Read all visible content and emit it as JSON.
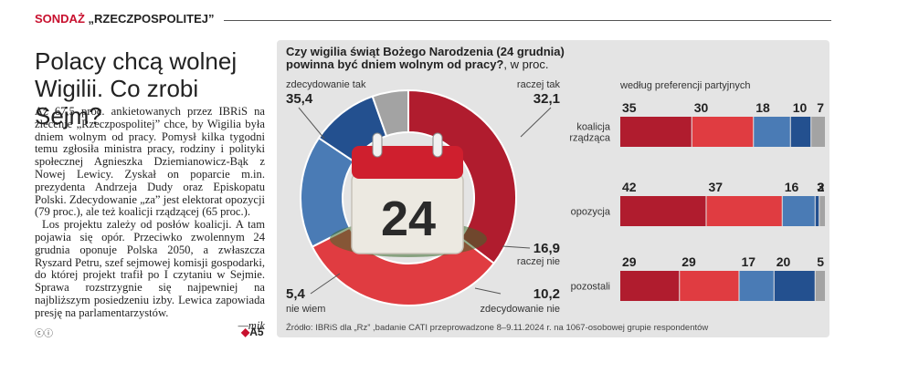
{
  "header": {
    "kicker_prefix": "SONDAŻ",
    "kicker_name": "„RZECZPOSPOLITEJ”"
  },
  "article": {
    "headline": "Polacy chcą wolnej Wigilii. Co zrobi Sejm?",
    "paragraph1": "Aż 67,5 proc. ankietowanych przez IBRiS na zlecenie „Rzeczpospolitej” chce, by Wigilia była dniem wolnym od pracy. Pomysł kilka tygodni temu zgłosiła ministra pracy, rodziny i polityki społecznej Agnieszka Dziemianowicz-Bąk z Nowej Lewicy. Zyskał on poparcie m.in. prezydenta Andrzeja Dudy oraz Episkopatu Polski. Zdecydowanie „za” jest elektorat opozycji (79 proc.), ale też koalicji rządzącej (65 proc.).",
    "paragraph2": "Los projektu zależy od posłów koalicji. A tam pojawia się opór. Przeciwko zwolennym 24 grudnia oponuje Polska 2050, a zwłaszcza Ryszard Petru, szef sejmowej komisji gospodarki, do której projekt trafił po I czytaniu w Sejmie. Sprawa rozstrzygnie się najpewniej na najbliższym posiedzeniu izby. Lewica zapowiada presję na parlamentarzystów.",
    "author": "—mik",
    "page_ref": "A5",
    "license": "ⓒⓘ"
  },
  "chart_data": [
    {
      "type": "pie",
      "title": "Czy wigilia świąt Bożego Narodzenia (24 grudnia) powinna być dniem wolnym od pracy?",
      "unit": ", w proc.",
      "slices": [
        {
          "label": "zdecydowanie tak",
          "value": 35.4,
          "value_text": "35,4",
          "color": "#b01c2e"
        },
        {
          "label": "raczej tak",
          "value": 32.1,
          "value_text": "32,1",
          "color": "#e03c41"
        },
        {
          "label": "raczej nie",
          "value": 16.9,
          "value_text": "16,9",
          "color": "#4a7bb5"
        },
        {
          "label": "zdecydowanie nie",
          "value": 10.2,
          "value_text": "10,2",
          "color": "#23508f"
        },
        {
          "label": "nie wiem",
          "value": 5.4,
          "value_text": "5,4",
          "color": "#a3a3a3"
        }
      ],
      "calendar_day": "24"
    },
    {
      "type": "bar",
      "stacked": true,
      "orientation": "horizontal",
      "title": "według preferencji partyjnych",
      "categories": [
        "koalicja rządząca",
        "opozycja",
        "pozostali"
      ],
      "category_lines": [
        [
          "koalicja",
          "rządząca"
        ],
        [
          "opozycja"
        ],
        [
          "pozostali"
        ]
      ],
      "series": [
        {
          "name": "zdecydowanie tak",
          "color": "#b01c2e",
          "values": [
            35,
            42,
            29
          ]
        },
        {
          "name": "raczej tak",
          "color": "#e03c41",
          "values": [
            30,
            37,
            29
          ]
        },
        {
          "name": "raczej nie",
          "color": "#4a7bb5",
          "values": [
            18,
            16,
            17
          ]
        },
        {
          "name": "zdecydowanie nie",
          "color": "#23508f",
          "values": [
            10,
            2,
            20
          ]
        },
        {
          "name": "nie wiem",
          "color": "#a3a3a3",
          "values": [
            7,
            3,
            5
          ]
        }
      ]
    }
  ],
  "source": "Źródło: IBRiS dla „Rz” ,badanie CATI przeprowadzone 8–9.11.2024 r. na 1067-osobowej grupie respondentów"
}
